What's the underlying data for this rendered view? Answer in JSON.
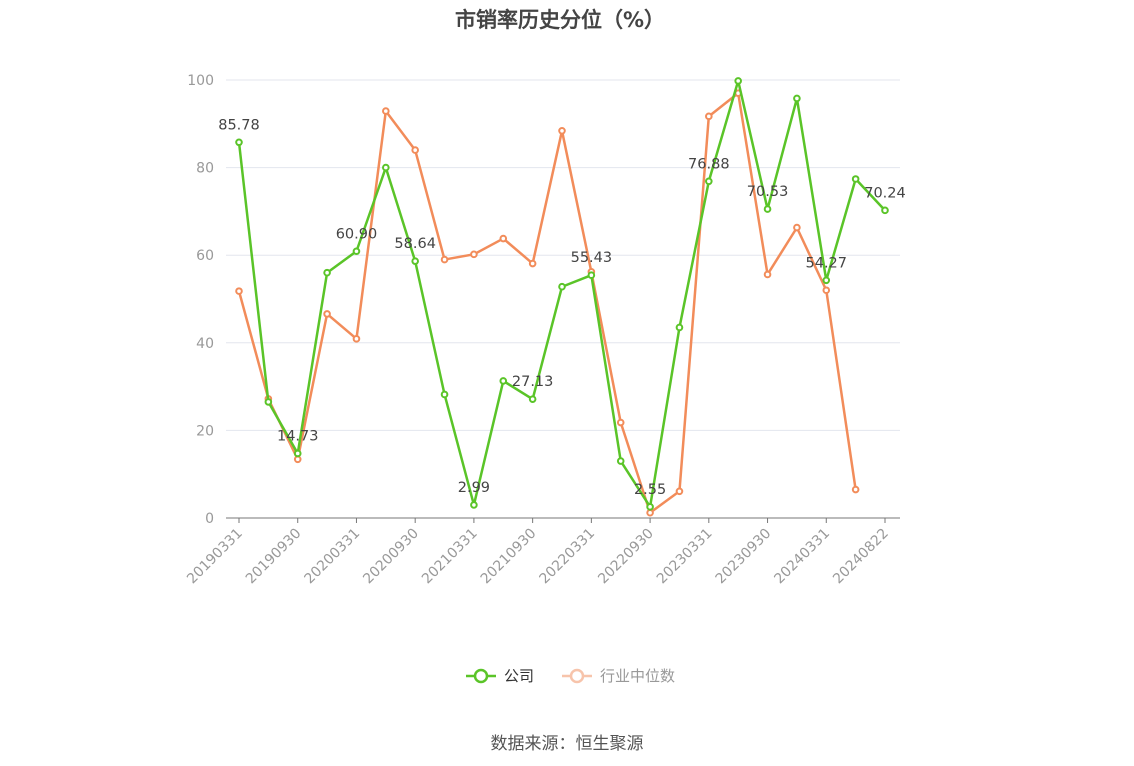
{
  "title": "市销率历史分位（%）",
  "source": "数据来源：恒生聚源",
  "chart_data": {
    "type": "line",
    "title": "市销率历史分位（%）",
    "x": [
      "20190331",
      "20190630",
      "20190930",
      "20191231",
      "20200331",
      "20200630",
      "20200930",
      "20201231",
      "20210331",
      "20210630",
      "20210930",
      "20211231",
      "20220331",
      "20220630",
      "20220930",
      "20221231",
      "20230331",
      "20230630",
      "20230930",
      "20231231",
      "20240331",
      "20240630",
      "20240822"
    ],
    "x_tick_labels": [
      "20190331",
      "20190930",
      "20200331",
      "20200930",
      "20210331",
      "20210930",
      "20220331",
      "20220930",
      "20230331",
      "20230930",
      "20240331",
      "20240822"
    ],
    "ylim": [
      0,
      100
    ],
    "y_ticks": [
      0,
      20,
      40,
      60,
      80,
      100
    ],
    "grid": true,
    "legend_position": "bottom",
    "series": [
      {
        "name": "公司",
        "color": "#5ac428",
        "values": [
          85.78,
          26.5,
          14.73,
          56.0,
          60.9,
          80.0,
          58.64,
          28.2,
          2.99,
          31.3,
          27.13,
          52.8,
          55.43,
          13.0,
          2.55,
          43.5,
          76.88,
          99.8,
          70.53,
          95.8,
          54.27,
          77.4,
          70.24
        ]
      },
      {
        "name": "行业中位数",
        "color": "#f28c5a",
        "values": [
          51.8,
          27.2,
          13.4,
          46.6,
          40.9,
          92.9,
          84.0,
          59.0,
          60.2,
          63.8,
          58.1,
          88.4,
          56.2,
          21.8,
          1.2,
          6.1,
          91.7,
          97.0,
          55.6,
          66.3,
          52.0,
          6.5,
          null
        ]
      }
    ],
    "annotations": [
      {
        "series": "公司",
        "x": "20190331",
        "text": "85.78"
      },
      {
        "series": "公司",
        "x": "20190930",
        "text": "14.73"
      },
      {
        "series": "公司",
        "x": "20200331",
        "text": "60.90"
      },
      {
        "series": "公司",
        "x": "20200930",
        "text": "58.64"
      },
      {
        "series": "公司",
        "x": "20210331",
        "text": "2.99"
      },
      {
        "series": "公司",
        "x": "20210930",
        "text": "27.13"
      },
      {
        "series": "公司",
        "x": "20220331",
        "text": "55.43"
      },
      {
        "series": "公司",
        "x": "20220930",
        "text": "2.55"
      },
      {
        "series": "公司",
        "x": "20230331",
        "text": "76.88"
      },
      {
        "series": "公司",
        "x": "20230930",
        "text": "70.53"
      },
      {
        "series": "公司",
        "x": "20240331",
        "text": "54.27"
      },
      {
        "series": "公司",
        "x": "20240822",
        "text": "70.24"
      }
    ]
  }
}
